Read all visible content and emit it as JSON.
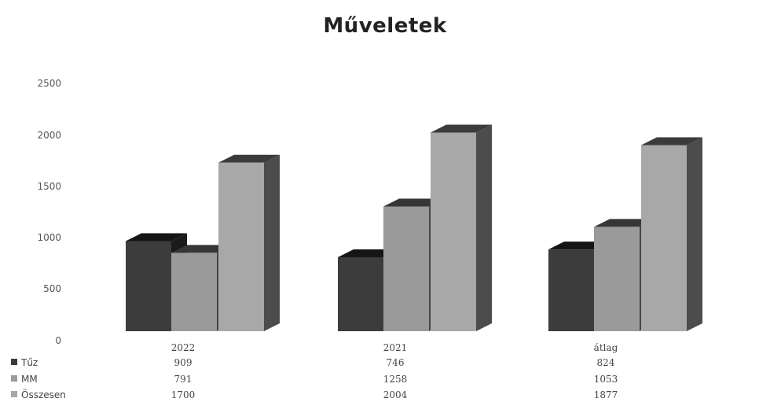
{
  "chart_data": {
    "type": "bar",
    "title": "Műveletek",
    "categories": [
      "2022",
      "2021",
      "átlag"
    ],
    "series": [
      {
        "name": "Tűz",
        "values": [
          909,
          746,
          824
        ],
        "color": "#3c3c3c"
      },
      {
        "name": "MM",
        "values": [
          791,
          1258,
          1053
        ],
        "color": "#9a9a9a"
      },
      {
        "name": "Összesen",
        "values": [
          1700,
          2004,
          1877
        ],
        "color": "#a8a8a8"
      }
    ],
    "y_ticks": [
      "0",
      "500",
      "1000",
      "1500",
      "2000",
      "2500"
    ],
    "ylim": [
      0,
      2500
    ],
    "grid": false,
    "legend": "data-table-left",
    "style": "3d-column"
  }
}
